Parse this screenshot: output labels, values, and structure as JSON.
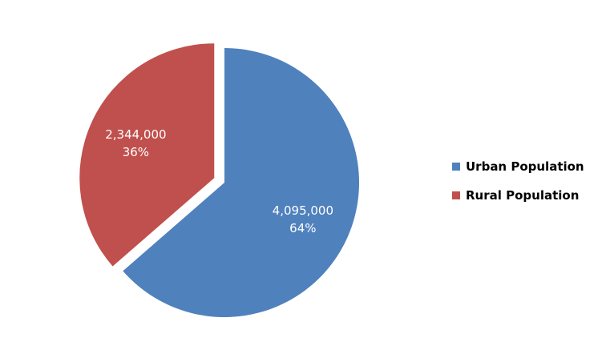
{
  "chart_data": {
    "type": "pie",
    "title": "",
    "slices": [
      {
        "name": "Urban Population",
        "value": 4095000,
        "value_label": "4,095,000",
        "percent_label": "64%",
        "color": "#4F81BD"
      },
      {
        "name": "Rural Population",
        "value": 2344000,
        "value_label": "2,344,000",
        "percent_label": "36%",
        "color": "#C0504D"
      }
    ],
    "legend_position": "right",
    "exploded_slice": "Rural Population",
    "start_angle_deg": 0,
    "direction": "clockwise"
  }
}
